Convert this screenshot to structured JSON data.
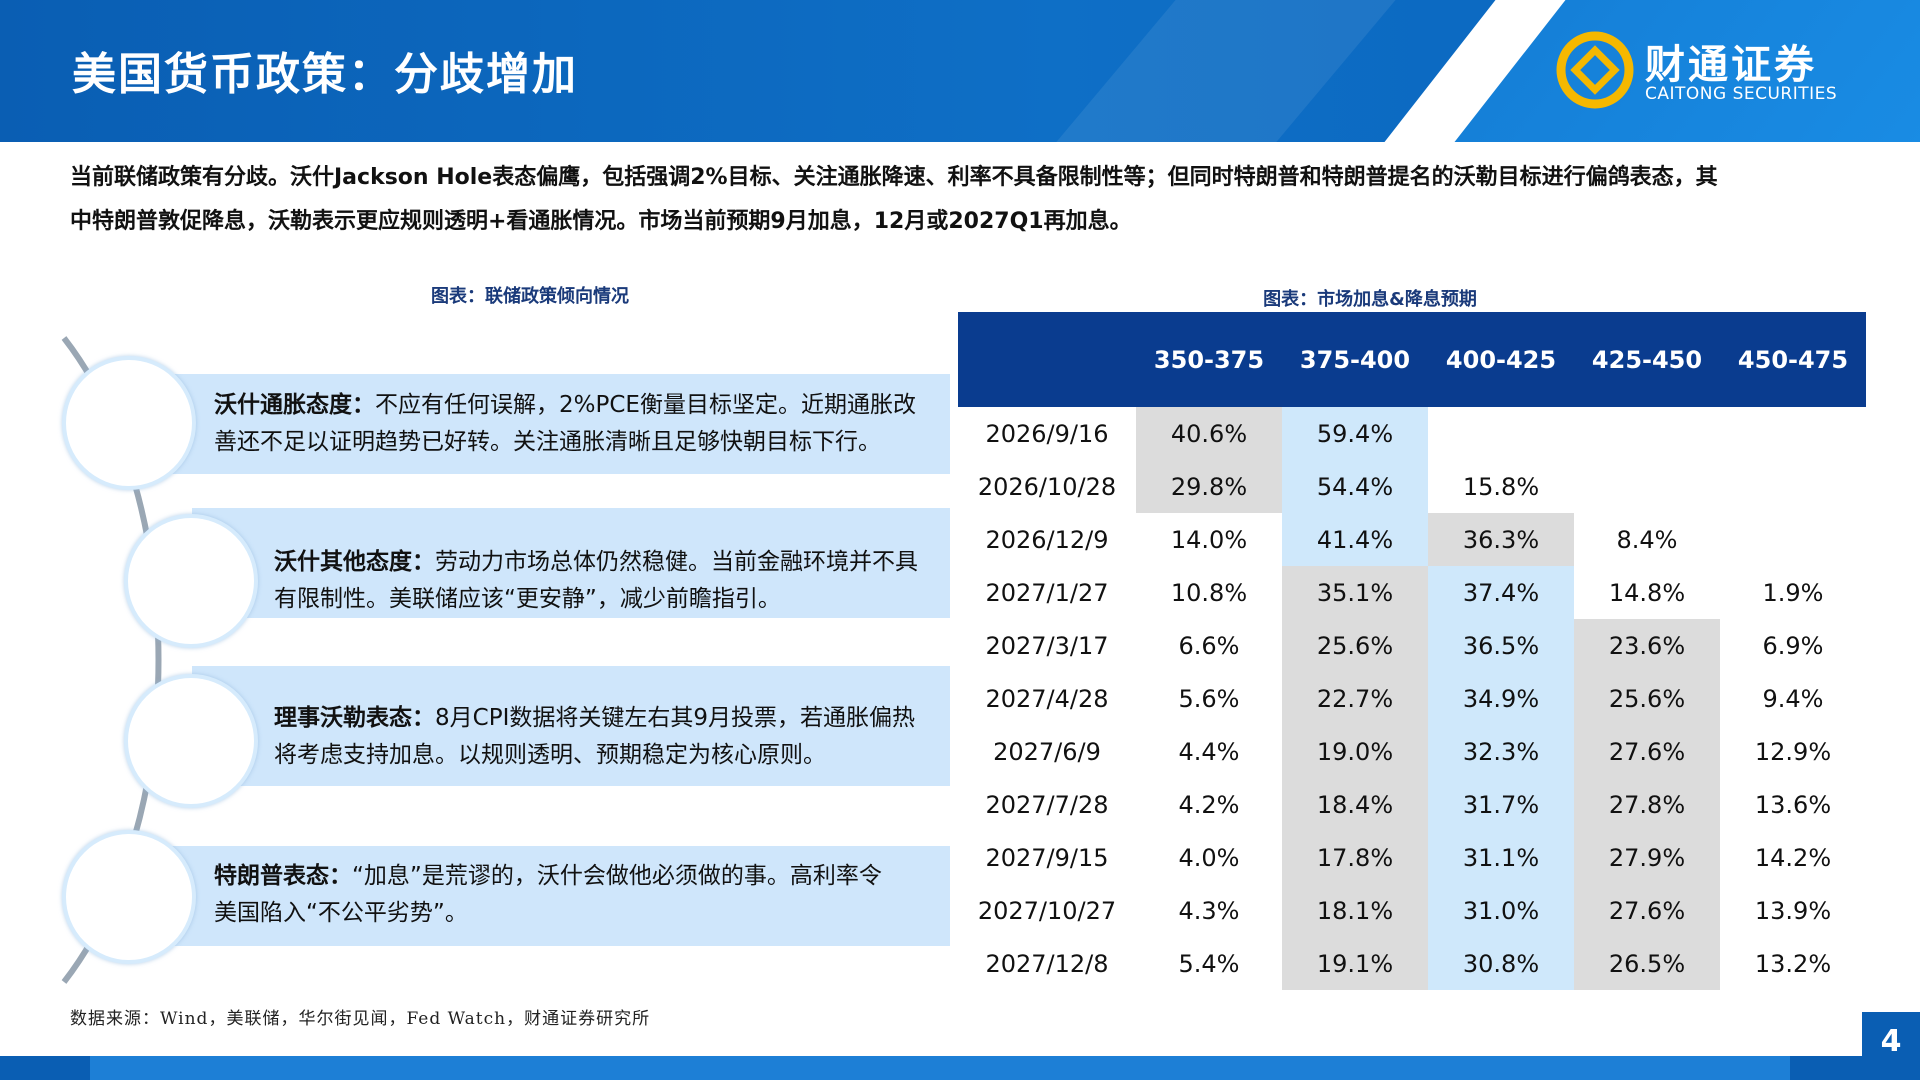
{
  "header": {
    "title": "美国货币政策：分歧增加",
    "logo_cn": "财通证券",
    "logo_en": "CAITONG SECURITIES"
  },
  "intro": {
    "line1": "当前联储政策有分歧。沃什Jackson Hole表态偏鹰，包括强调2%目标、关注通胀降速、利率不具备限制性等；但同时特朗普和特朗普提名的沃勒目标进行偏鸽表态，其",
    "line2": "中特朗普敦促降息，沃勒表示更应规则透明+看通胀情况。市场当前预期9月加息，12月或2027Q1再加息。"
  },
  "left": {
    "caption": "图表：联储政策倾向情况",
    "items": [
      {
        "title": "沃什通胀态度",
        "sep": "：",
        "line1": "不应有任何误解，2%PCE衡量目标坚定。近期通胀改",
        "line2": "善还不足以证明趋势已好转。关注通胀清晰且足够快朝目标下行。"
      },
      {
        "title": "沃什其他态度",
        "sep": "：",
        "line1": "劳动力市场总体仍然稳健。当前金融环境并不具",
        "line2": "有限制性。美联储应该“更安静”，减少前瞻指引。"
      },
      {
        "title": "理事沃勒表态",
        "sep": "：",
        "line1": "8月CPI数据将关键左右其9月投票，若通胀偏热",
        "line2": "将考虑支持加息。以规则透明、预期稳定为核心原则。"
      },
      {
        "title": "特朗普表态",
        "sep": "：",
        "line1": "“加息”是荒谬的，沃什会做他必须做的事。高利率令",
        "line2": "美国陷入“不公平劣势”。"
      }
    ]
  },
  "table": {
    "caption": "图表：市场加息&降息预期",
    "columns": [
      "",
      "350-375",
      "375-400",
      "400-425",
      "425-450",
      "450-475"
    ],
    "rows": [
      {
        "date": "2026/9/16",
        "cells": [
          "40.6%",
          "59.4%",
          "",
          "",
          ""
        ]
      },
      {
        "date": "2026/10/28",
        "cells": [
          "29.8%",
          "54.4%",
          "15.8%",
          "",
          ""
        ]
      },
      {
        "date": "2026/12/9",
        "cells": [
          "14.0%",
          "41.4%",
          "36.3%",
          "8.4%",
          ""
        ]
      },
      {
        "date": "2027/1/27",
        "cells": [
          "10.8%",
          "35.1%",
          "37.4%",
          "14.8%",
          "1.9%"
        ]
      },
      {
        "date": "2027/3/17",
        "cells": [
          "6.6%",
          "25.6%",
          "36.5%",
          "23.6%",
          "6.9%"
        ]
      },
      {
        "date": "2027/4/28",
        "cells": [
          "5.6%",
          "22.7%",
          "34.9%",
          "25.6%",
          "9.4%"
        ]
      },
      {
        "date": "2027/6/9",
        "cells": [
          "4.4%",
          "19.0%",
          "32.3%",
          "27.6%",
          "12.9%"
        ]
      },
      {
        "date": "2027/7/28",
        "cells": [
          "4.2%",
          "18.4%",
          "31.7%",
          "27.8%",
          "13.6%"
        ]
      },
      {
        "date": "2027/9/15",
        "cells": [
          "4.0%",
          "17.8%",
          "31.1%",
          "27.9%",
          "14.2%"
        ]
      },
      {
        "date": "2027/10/27",
        "cells": [
          "4.3%",
          "18.1%",
          "31.0%",
          "27.6%",
          "13.9%"
        ]
      },
      {
        "date": "2027/12/8",
        "cells": [
          "5.4%",
          "19.1%",
          "30.8%",
          "26.5%",
          "13.2%"
        ]
      }
    ],
    "shading": [
      [
        "g",
        "b",
        "",
        "",
        ""
      ],
      [
        "g",
        "b",
        "",
        "",
        ""
      ],
      [
        "",
        "b",
        "g",
        "",
        ""
      ],
      [
        "",
        "g",
        "b",
        "",
        ""
      ],
      [
        "",
        "g",
        "b",
        "g",
        ""
      ],
      [
        "",
        "g",
        "b",
        "g",
        ""
      ],
      [
        "",
        "g",
        "b",
        "g",
        ""
      ],
      [
        "",
        "g",
        "b",
        "g",
        ""
      ],
      [
        "",
        "g",
        "b",
        "g",
        ""
      ],
      [
        "",
        "g",
        "b",
        "g",
        ""
      ],
      [
        "",
        "g",
        "b",
        "g",
        ""
      ]
    ]
  },
  "footer": {
    "source": "数据来源：Wind，美联储，华尔街见闻，Fed Watch，财通证券研究所",
    "page": "4"
  },
  "colors": {
    "header_blue": "#0a5eb3",
    "table_head": "#0a3c8f",
    "light_blue": "#cfe8fb",
    "gray": "#dcdcdc",
    "logo_gold": "#f5b800"
  }
}
